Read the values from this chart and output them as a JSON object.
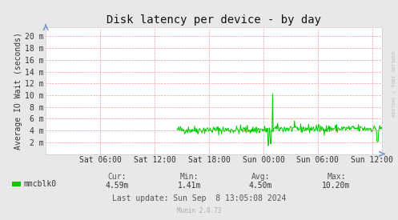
{
  "title": "Disk latency per device - by day",
  "ylabel": "Average IO Wait (seconds)",
  "bg_color": "#e8e8e8",
  "plot_bg_color": "#FFFFFF",
  "grid_color": "#FF9999",
  "line_color": "#00CC00",
  "line_fill_color": "#00CC00",
  "x_tick_labels": [
    "Sat 06:00",
    "Sat 12:00",
    "Sat 18:00",
    "Sun 00:00",
    "Sun 06:00",
    "Sun 12:00"
  ],
  "y_tick_labels": [
    "2 m",
    "4 m",
    "6 m",
    "8 m",
    "10 m",
    "12 m",
    "14 m",
    "16 m",
    "18 m",
    "20 m"
  ],
  "y_tick_values": [
    0.002,
    0.004,
    0.006,
    0.008,
    0.01,
    0.012,
    0.014,
    0.016,
    0.018,
    0.02
  ],
  "ylim": [
    0.0,
    0.0215
  ],
  "total_hours": 37.08,
  "x_tick_hours": [
    6,
    12,
    18,
    24,
    30,
    36
  ],
  "legend_label": "mmcblk0",
  "legend_color": "#00CC00",
  "cur_label": "Cur:",
  "cur_val": "4.59m",
  "min_label": "Min:",
  "min_val": "1.41m",
  "avg_label": "Avg:",
  "avg_val": "4.50m",
  "max_label": "Max:",
  "max_val": "10.20m",
  "last_update": "Last update: Sun Sep  8 13:05:08 2024",
  "munin_text": "Munin 2.0.73",
  "watermark": "RRDTOOL / TOBI OETIKER",
  "title_fontsize": 10,
  "axis_fontsize": 7,
  "legend_fontsize": 7,
  "footer_fontsize": 7
}
